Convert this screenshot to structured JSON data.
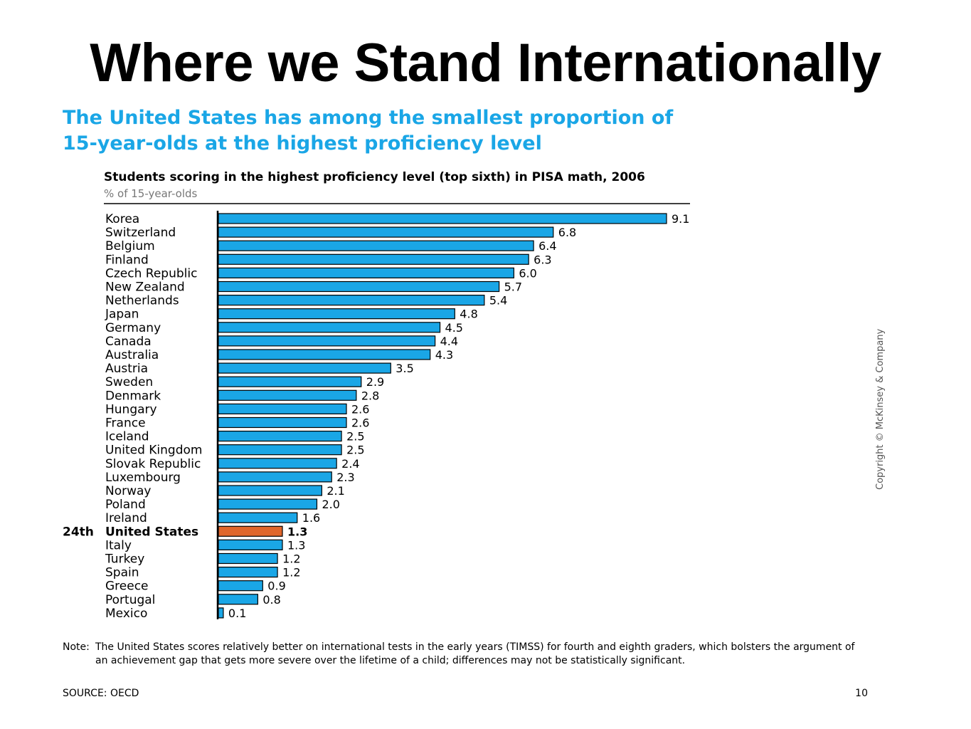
{
  "slide": {
    "title": "Where we Stand Internationally",
    "subtitle_line1": "The United States has among the smallest proportion of",
    "subtitle_line2": "15-year-olds at the highest proficiency level",
    "note_label": "Note:",
    "note_text": "The United States scores relatively better on international tests in the early years (TIMSS) for fourth and eighth graders, which bolsters the argument of an achievement gap that gets more severe over the lifetime of a child; differences may not be statistically significant.",
    "source": "SOURCE: OECD",
    "page_number": "10",
    "copyright": "Copyright © McKinsey & Company"
  },
  "chart_data": {
    "type": "bar",
    "orientation": "horizontal",
    "title": "Students scoring in the highest proficiency level (top sixth) in PISA math, 2006",
    "units": "% of 15-year-olds",
    "categories": [
      "Korea",
      "Switzerland",
      "Belgium",
      "Finland",
      "Czech Republic",
      "New Zealand",
      "Netherlands",
      "Japan",
      "Germany",
      "Canada",
      "Australia",
      "Austria",
      "Sweden",
      "Denmark",
      "Hungary",
      "France",
      "Iceland",
      "United Kingdom",
      "Slovak Republic",
      "Luxembourg",
      "Norway",
      "Poland",
      "Ireland",
      "United States",
      "Italy",
      "Turkey",
      "Spain",
      "Greece",
      "Portugal",
      "Mexico"
    ],
    "values": [
      9.1,
      6.8,
      6.4,
      6.3,
      6.0,
      5.7,
      5.4,
      4.8,
      4.5,
      4.4,
      4.3,
      3.5,
      2.9,
      2.8,
      2.6,
      2.6,
      2.5,
      2.5,
      2.4,
      2.3,
      2.1,
      2.0,
      1.6,
      1.3,
      1.3,
      1.2,
      1.2,
      0.9,
      0.8,
      0.1
    ],
    "value_labels": [
      "9.1",
      "6.8",
      "6.4",
      "6.3",
      "6.0",
      "5.7",
      "5.4",
      "4.8",
      "4.5",
      "4.4",
      "4.3",
      "3.5",
      "2.9",
      "2.8",
      "2.6",
      "2.6",
      "2.5",
      "2.5",
      "2.4",
      "2.3",
      "2.1",
      "2.0",
      "1.6",
      "1.3",
      "1.3",
      "1.2",
      "1.2",
      "0.9",
      "0.8",
      "0.1"
    ],
    "highlight": {
      "category": "United States",
      "rank_label": "24th",
      "color": "#e0662b"
    },
    "bar_color": "#1aa6e6",
    "bar_outline": "#000000",
    "xlim": [
      0,
      9.1
    ],
    "grid": false,
    "legend": "none"
  }
}
